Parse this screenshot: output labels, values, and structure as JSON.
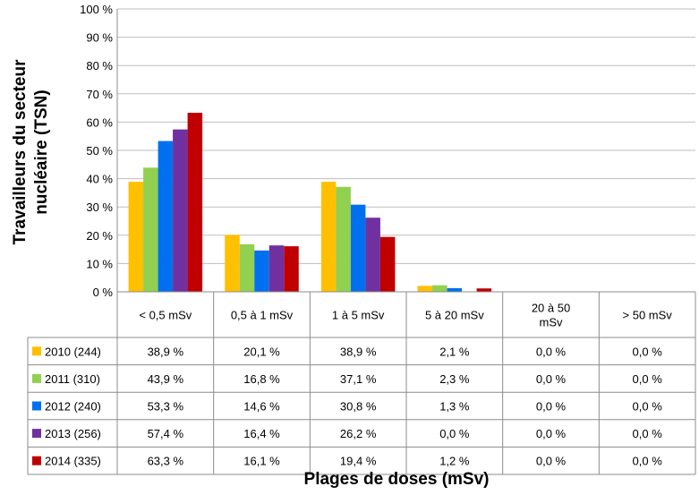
{
  "chart_data": {
    "type": "bar",
    "ylabel_lines": [
      "Travailleurs du secteur",
      "nucléaire (TSN)"
    ],
    "xlabel": "Plages de doses (mSv)",
    "ylim": [
      0,
      100
    ],
    "yticks": [
      "0 %",
      "10 %",
      "20 %",
      "30 %",
      "40 %",
      "50 %",
      "60 %",
      "70 %",
      "80 %",
      "90 %",
      "100 %"
    ],
    "grid": true,
    "legend": "table-left",
    "categories": [
      [
        "< 0,5 mSv"
      ],
      [
        "0,5 à 1 mSv"
      ],
      [
        "1 à 5 mSv"
      ],
      [
        "5 à 20 mSv"
      ],
      [
        "20 à 50",
        "mSv"
      ],
      [
        "> 50 mSv"
      ]
    ],
    "series": [
      {
        "name": "2010 (244)",
        "color": "#FFC000",
        "values": [
          38.9,
          20.1,
          38.9,
          2.1,
          0.0,
          0.0
        ],
        "labels": [
          "38,9 %",
          "20,1 %",
          "38,9 %",
          "2,1 %",
          "0,0 %",
          "0,0 %"
        ]
      },
      {
        "name": "2011 (310)",
        "color": "#92D050",
        "values": [
          43.9,
          16.8,
          37.1,
          2.3,
          0.0,
          0.0
        ],
        "labels": [
          "43,9 %",
          "16,8 %",
          "37,1 %",
          "2,3 %",
          "0,0 %",
          "0,0 %"
        ]
      },
      {
        "name": "2012 (240)",
        "color": "#0070F0",
        "values": [
          53.3,
          14.6,
          30.8,
          1.3,
          0.0,
          0.0
        ],
        "labels": [
          "53,3 %",
          "14,6 %",
          "30,8 %",
          "1,3 %",
          "0,0 %",
          "0,0 %"
        ]
      },
      {
        "name": "2013 (256)",
        "color": "#7030A0",
        "values": [
          57.4,
          16.4,
          26.2,
          0.0,
          0.0,
          0.0
        ],
        "labels": [
          "57,4 %",
          "16,4 %",
          "26,2 %",
          "0,0 %",
          "0,0 %",
          "0,0 %"
        ]
      },
      {
        "name": "2014 (335)",
        "color": "#C00000",
        "values": [
          63.3,
          16.1,
          19.4,
          1.2,
          0.0,
          0.0
        ],
        "labels": [
          "63,3 %",
          "16,1 %",
          "19,4 %",
          "1,2 %",
          "0,0 %",
          "0,0 %"
        ]
      }
    ]
  }
}
